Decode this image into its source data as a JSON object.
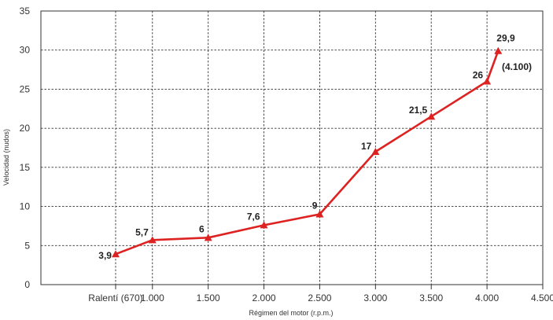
{
  "chart_data": {
    "type": "line",
    "xlabel": "Régimen del motor (r.p.m.)",
    "ylabel": "Velocidad (nudos)",
    "xlim": [
      0,
      4500
    ],
    "ylim": [
      0,
      35
    ],
    "x_ticks": [
      {
        "value": 670,
        "label": "Ralentí (670)"
      },
      {
        "value": 1000,
        "label": "1.000"
      },
      {
        "value": 1500,
        "label": "1.500"
      },
      {
        "value": 2000,
        "label": "2.000"
      },
      {
        "value": 2500,
        "label": "2.500"
      },
      {
        "value": 3000,
        "label": "3.000"
      },
      {
        "value": 3500,
        "label": "3.500"
      },
      {
        "value": 4000,
        "label": "4.000"
      },
      {
        "value": 4500,
        "label": "4.500"
      }
    ],
    "y_ticks": [
      0,
      5,
      10,
      15,
      20,
      25,
      30,
      35
    ],
    "grid": true,
    "line_color": "#dd2222",
    "series": [
      {
        "points": [
          {
            "x": 670,
            "y": 3.9,
            "label": "3,9"
          },
          {
            "x": 1000,
            "y": 5.7,
            "label": "5,7"
          },
          {
            "x": 1500,
            "y": 6,
            "label": "6"
          },
          {
            "x": 2000,
            "y": 7.6,
            "label": "7,6"
          },
          {
            "x": 2500,
            "y": 9,
            "label": "9"
          },
          {
            "x": 3000,
            "y": 17,
            "label": "17"
          },
          {
            "x": 3500,
            "y": 21.5,
            "label": "21,5"
          },
          {
            "x": 4000,
            "y": 26,
            "label": "26"
          },
          {
            "x": 4100,
            "y": 29.9,
            "label": "29,9"
          }
        ]
      }
    ],
    "annotations": [
      "(4.100)"
    ]
  }
}
